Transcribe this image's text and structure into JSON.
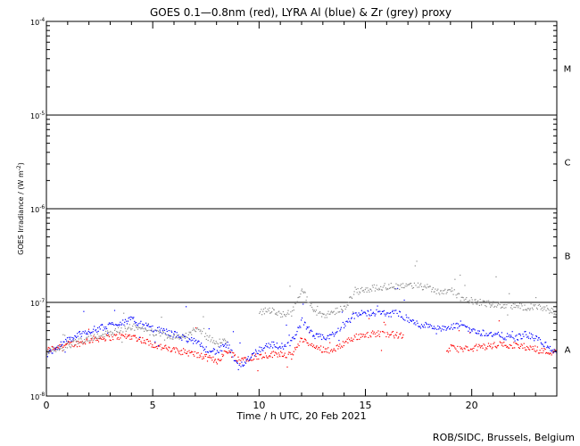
{
  "chart_data": {
    "type": "scatter",
    "title": "GOES 0.1—0.8nm (red), LYRA Al (blue) & Zr (grey) proxy",
    "xlabel": "Time / h UTC, 20 Feb 2021",
    "ylabel_main": "GOES Irradiance / (W m",
    "ylabel_sup": "-2",
    "ylabel_close": ")",
    "credit": "ROB/SIDC, Brussels, Belgium",
    "x_range": [
      0,
      24
    ],
    "y_range": [
      1e-08,
      0.0001
    ],
    "y_scale": "log",
    "x_ticks": [
      0,
      5,
      10,
      15,
      20
    ],
    "y_ticks": [
      {
        "value": 1e-08,
        "base": "10",
        "exp": "-8"
      },
      {
        "value": 1e-07,
        "base": "10",
        "exp": "-7"
      },
      {
        "value": 1e-06,
        "base": "10",
        "exp": "-6"
      },
      {
        "value": 1e-05,
        "base": "10",
        "exp": "-5"
      },
      {
        "value": 0.0001,
        "base": "10",
        "exp": "-4"
      }
    ],
    "flare_class_lines": [
      1e-07,
      1e-06,
      1e-05
    ],
    "flare_classes": [
      {
        "label": "A",
        "value": 3.16e-08
      },
      {
        "label": "B",
        "value": 3.16e-07
      },
      {
        "label": "C",
        "value": 3.16e-06
      },
      {
        "label": "M",
        "value": 3.16e-05
      }
    ],
    "series": [
      {
        "name": "GOES 0.1—0.8nm",
        "color": "#ff0000",
        "segments": [
          {
            "x": [
              0.0,
              0.5,
              1.0,
              1.5,
              2.0,
              2.5,
              3.0,
              3.5,
              4.0,
              4.5,
              5.0,
              5.5,
              6.0,
              6.5,
              7.0,
              7.5,
              8.0,
              8.5,
              9.0,
              9.5,
              10.0,
              10.5,
              11.0,
              11.5,
              12.0,
              12.5,
              13.0,
              13.5,
              14.0,
              14.5,
              15.0,
              15.5,
              16.0,
              16.5,
              16.8
            ],
            "y": [
              3.1e-08,
              3.4e-08,
              3.6e-08,
              3.7e-08,
              4e-08,
              4.2e-08,
              4.3e-08,
              4.4e-08,
              4.4e-08,
              4e-08,
              3.6e-08,
              3.3e-08,
              3.1e-08,
              3e-08,
              2.8e-08,
              2.6e-08,
              2.4e-08,
              3.1e-08,
              2.5e-08,
              2.6e-08,
              2.7e-08,
              2.8e-08,
              2.9e-08,
              2.7e-08,
              4.2e-08,
              3.4e-08,
              3.2e-08,
              3.1e-08,
              3.8e-08,
              4.3e-08,
              4.6e-08,
              4.7e-08,
              4.7e-08,
              4.5e-08,
              4.4e-08
            ]
          },
          {
            "x": [
              18.8,
              19.0,
              19.5,
              20.0,
              20.5,
              21.0,
              21.5,
              22.0,
              22.5,
              23.0,
              23.5,
              24.0
            ],
            "y": [
              3.1e-08,
              3.3e-08,
              3.2e-08,
              3.3e-08,
              3.4e-08,
              3.5e-08,
              3.6e-08,
              3.5e-08,
              3.4e-08,
              3.2e-08,
              3e-08,
              3e-08
            ]
          }
        ]
      },
      {
        "name": "LYRA Al",
        "color": "#0000ff",
        "segments": [
          {
            "x": [
              0.0,
              0.5,
              1.0,
              1.5,
              2.0,
              2.5,
              3.0,
              3.5,
              4.0,
              4.5,
              5.0,
              5.5,
              6.0,
              6.5,
              7.0,
              7.5,
              8.0,
              8.5,
              9.0,
              9.5,
              10.0,
              10.5,
              11.0,
              11.5,
              12.0,
              12.5,
              13.0,
              13.5,
              14.0,
              14.5,
              15.0,
              15.5,
              16.0,
              16.5,
              17.0,
              17.5,
              18.0,
              18.5,
              19.0,
              19.5,
              20.0,
              20.5,
              21.0,
              21.5,
              22.0,
              22.5,
              23.0,
              23.5,
              24.0
            ],
            "y": [
              2.8e-08,
              3.4e-08,
              4e-08,
              4.6e-08,
              5e-08,
              5.4e-08,
              5.8e-08,
              6.2e-08,
              6.6e-08,
              5.8e-08,
              5.2e-08,
              5e-08,
              4.6e-08,
              4.2e-08,
              3.8e-08,
              3.2e-08,
              3e-08,
              3.6e-08,
              2e-08,
              2.6e-08,
              3.2e-08,
              3.6e-08,
              3.4e-08,
              3.8e-08,
              6.4e-08,
              4.5e-08,
              4.2e-08,
              4.6e-08,
              6e-08,
              7.4e-08,
              7.8e-08,
              7.9e-08,
              7.6e-08,
              7.8e-08,
              6.6e-08,
              5.8e-08,
              5.8e-08,
              5.2e-08,
              5.4e-08,
              6e-08,
              5e-08,
              4.8e-08,
              4.6e-08,
              4.4e-08,
              4.2e-08,
              4.6e-08,
              4.2e-08,
              3.5e-08,
              2.8e-08
            ]
          }
        ]
      },
      {
        "name": "LYRA Zr",
        "color": "#8c8c8c",
        "segments": [
          {
            "x": [
              0.0,
              0.5,
              1.0,
              1.5,
              2.0,
              2.5,
              3.0,
              3.5,
              4.0,
              4.5,
              5.0,
              5.5,
              6.0,
              6.5,
              7.0,
              7.5,
              8.0,
              8.5
            ],
            "y": [
              3e-08,
              3.2e-08,
              3.5e-08,
              3.9e-08,
              4.2e-08,
              4.5e-08,
              4.8e-08,
              5.2e-08,
              5.6e-08,
              5.2e-08,
              4.8e-08,
              4.6e-08,
              4.4e-08,
              4.4e-08,
              5.2e-08,
              4.4e-08,
              3.6e-08,
              4e-08
            ]
          },
          {
            "x": [
              10.0,
              10.5,
              11.0,
              11.5,
              12.0,
              12.5,
              13.0,
              13.5,
              14.0,
              14.5,
              15.0,
              15.5,
              16.0,
              16.5,
              17.0,
              17.5,
              18.0,
              18.5,
              19.0,
              19.5,
              20.0,
              20.5,
              21.0,
              21.5,
              22.0,
              22.5,
              23.0,
              23.5,
              24.0
            ],
            "y": [
              8e-08,
              8.4e-08,
              7.6e-08,
              7.8e-08,
              1.4e-07,
              8.4e-08,
              7.4e-08,
              8e-08,
              9e-08,
              1.3e-07,
              1.4e-07,
              1.45e-07,
              1.5e-07,
              1.5e-07,
              1.55e-07,
              1.5e-07,
              1.45e-07,
              1.3e-07,
              1.4e-07,
              1.1e-07,
              1.05e-07,
              1e-07,
              9.6e-08,
              9.4e-08,
              9.2e-08,
              9e-08,
              9e-08,
              8.6e-08,
              7.6e-08
            ]
          }
        ]
      }
    ]
  }
}
